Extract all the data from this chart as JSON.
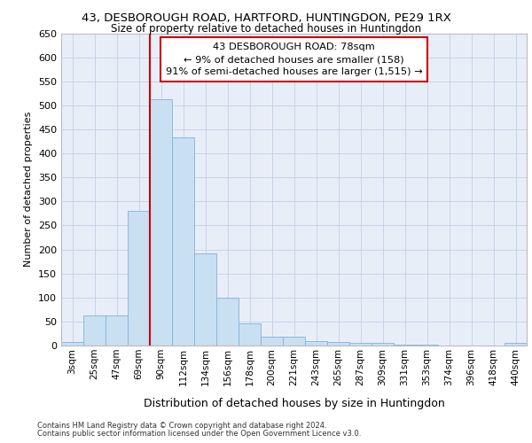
{
  "title1": "43, DESBOROUGH ROAD, HARTFORD, HUNTINGDON, PE29 1RX",
  "title2": "Size of property relative to detached houses in Huntingdon",
  "xlabel": "Distribution of detached houses by size in Huntingdon",
  "ylabel": "Number of detached properties",
  "categories": [
    "3sqm",
    "25sqm",
    "47sqm",
    "69sqm",
    "90sqm",
    "112sqm",
    "134sqm",
    "156sqm",
    "178sqm",
    "200sqm",
    "221sqm",
    "243sqm",
    "265sqm",
    "287sqm",
    "309sqm",
    "331sqm",
    "353sqm",
    "374sqm",
    "396sqm",
    "418sqm",
    "440sqm"
  ],
  "values": [
    8,
    63,
    63,
    280,
    513,
    433,
    192,
    100,
    46,
    18,
    18,
    10,
    8,
    5,
    5,
    2,
    2,
    0,
    0,
    0,
    5
  ],
  "bar_color": "#c9dff2",
  "bar_edge_color": "#7fb3d8",
  "bar_width": 1.0,
  "vline_color": "#cc0000",
  "annotation_line1": "43 DESBOROUGH ROAD: 78sqm",
  "annotation_line2": "← 9% of detached houses are smaller (158)",
  "annotation_line3": "91% of semi-detached houses are larger (1,515) →",
  "annotation_box_color": "#cc0000",
  "annotation_bg": "#ffffff",
  "ylim": [
    0,
    650
  ],
  "yticks": [
    0,
    50,
    100,
    150,
    200,
    250,
    300,
    350,
    400,
    450,
    500,
    550,
    600,
    650
  ],
  "grid_color": "#c8d4e8",
  "bg_color": "#e8eef8",
  "footnote1": "Contains HM Land Registry data © Crown copyright and database right 2024.",
  "footnote2": "Contains public sector information licensed under the Open Government Licence v3.0."
}
